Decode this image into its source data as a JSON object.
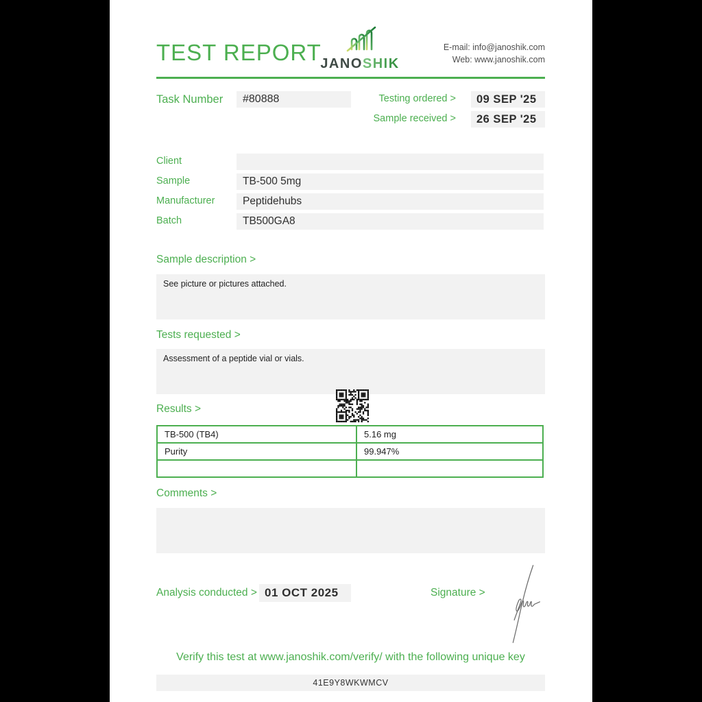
{
  "header": {
    "title": "TEST REPORT",
    "logo_text_left": "JANO",
    "logo_text_right": "SHIK",
    "email": "E-mail: info@janoshik.com",
    "web": "Web: www.janoshik.com"
  },
  "task": {
    "label": "Task Number",
    "value": "#80888",
    "dates": [
      {
        "label": "Testing ordered >",
        "value": "09 SEP '25"
      },
      {
        "label": "Sample received >",
        "value": "26 SEP '25"
      }
    ]
  },
  "info_rows": [
    {
      "label": "Client",
      "value": ""
    },
    {
      "label": "Sample",
      "value": "TB-500 5mg"
    },
    {
      "label": "Manufacturer",
      "value": "Peptidehubs"
    },
    {
      "label": "Batch",
      "value": "TB500GA8"
    }
  ],
  "sections": {
    "sample_description": {
      "heading": "Sample description >",
      "body": "See picture or pictures attached."
    },
    "tests_requested": {
      "heading": "Tests requested >",
      "body": "Assessment of a peptide vial or vials."
    },
    "results": {
      "heading": "Results >"
    },
    "comments": {
      "heading": "Comments >",
      "body": ""
    }
  },
  "results_table": {
    "rows": [
      {
        "name": "TB-500 (TB4)",
        "value": "5.16 mg"
      },
      {
        "name": "Purity",
        "value": "99.947%"
      },
      {
        "name": "",
        "value": ""
      }
    ]
  },
  "footer": {
    "analysis_label": "Analysis conducted >",
    "analysis_value": "01 OCT 2025",
    "signature_label": "Signature >",
    "verify_text": "Verify this test at www.janoshik.com/verify/ with the following unique key",
    "verify_key": "41E9Y8WKWMCV"
  },
  "colors": {
    "accent": "#4CAF50",
    "field_background": "#f2f2f2",
    "text": "#2f2f2f",
    "page": "#ffffff",
    "backdrop": "#000000"
  }
}
